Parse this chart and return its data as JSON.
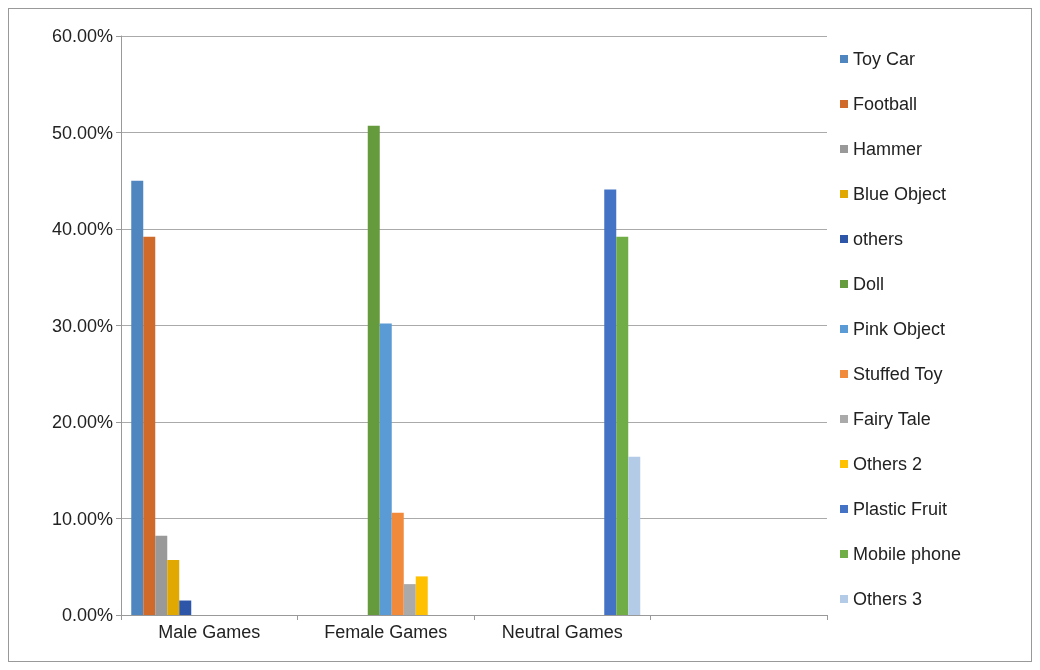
{
  "chart_data": {
    "type": "bar",
    "categories": [
      "Male Games",
      "Female Games",
      "Neutral Games",
      null
    ],
    "series": [
      {
        "name": "Toy Car",
        "color": "#4f86bf",
        "values": [
          45.0,
          null,
          null,
          null
        ]
      },
      {
        "name": "Football",
        "color": "#d06a2a",
        "values": [
          39.2,
          null,
          null,
          null
        ]
      },
      {
        "name": "Hammer",
        "color": "#999999",
        "values": [
          8.2,
          null,
          null,
          null
        ]
      },
      {
        "name": "Blue Object",
        "color": "#e0a800",
        "values": [
          5.7,
          null,
          null,
          null
        ]
      },
      {
        "name": "others",
        "color": "#2e56a8",
        "values": [
          1.5,
          null,
          null,
          null
        ]
      },
      {
        "name": "Doll",
        "color": "#659a3d",
        "values": [
          null,
          50.7,
          null,
          null
        ]
      },
      {
        "name": "Pink Object",
        "color": "#5b9bd5",
        "values": [
          null,
          30.2,
          null,
          null
        ]
      },
      {
        "name": "Stuffed Toy",
        "color": "#f28a3c",
        "values": [
          null,
          10.6,
          null,
          null
        ]
      },
      {
        "name": "Fairy Tale",
        "color": "#aaaaaa",
        "values": [
          null,
          3.2,
          null,
          null
        ]
      },
      {
        "name": "Others 2",
        "color": "#ffc000",
        "values": [
          null,
          4.0,
          null,
          null
        ]
      },
      {
        "name": "Plastic Fruit",
        "color": "#4472c4",
        "values": [
          null,
          null,
          44.1,
          null
        ]
      },
      {
        "name": "Mobile phone",
        "color": "#70ad47",
        "values": [
          null,
          null,
          39.2,
          null
        ]
      },
      {
        "name": "Others 3",
        "color": "#b4cbe8",
        "values": [
          null,
          null,
          16.4,
          null
        ]
      }
    ],
    "ylim": [
      0,
      60
    ],
    "yticks": [
      {
        "value": 0,
        "label": "0.00%"
      },
      {
        "value": 10,
        "label": "10.00%"
      },
      {
        "value": 20,
        "label": "20.00%"
      },
      {
        "value": 30,
        "label": "30.00%"
      },
      {
        "value": 40,
        "label": "40.00%"
      },
      {
        "value": 50,
        "label": "50.00%"
      },
      {
        "value": 60,
        "label": "60.00%"
      }
    ],
    "grid": "y",
    "legend": "right"
  }
}
